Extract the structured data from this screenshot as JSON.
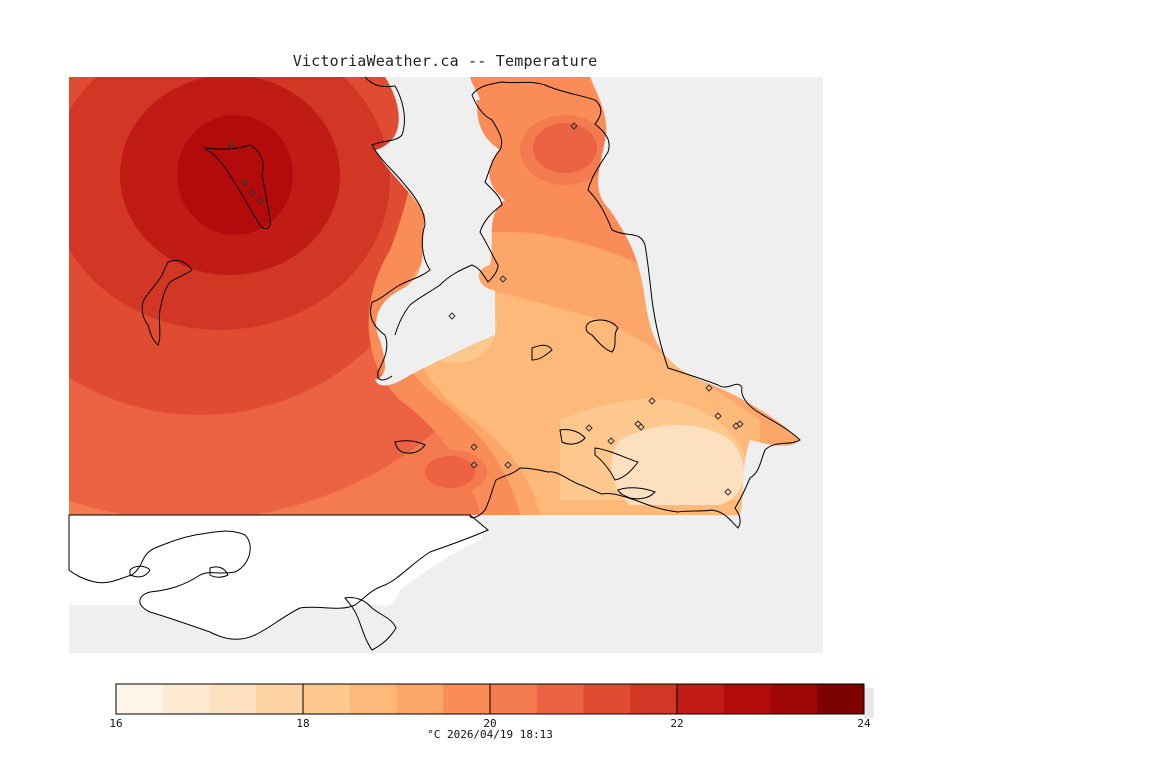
{
  "title": "VictoriaWeather.ca -- Temperature",
  "legend": {
    "min": 16,
    "max": 24,
    "labeled_ticks": [
      "16",
      "18",
      "20",
      "22",
      "24"
    ],
    "colors": [
      "#fff5eb",
      "#fee9d3",
      "#fde0c0",
      "#fdd3a4",
      "#fdc88e",
      "#fdb97a",
      "#fca66a",
      "#fa8c58",
      "#f47a4f",
      "#ec6343",
      "#e04c32",
      "#d23725",
      "#c01c15",
      "#b30b0b",
      "#9e0606",
      "#7d0202"
    ],
    "caption": "°C  2026/04/19 18:13"
  },
  "map": {
    "background": "#efefef",
    "stations_count": 19
  }
}
